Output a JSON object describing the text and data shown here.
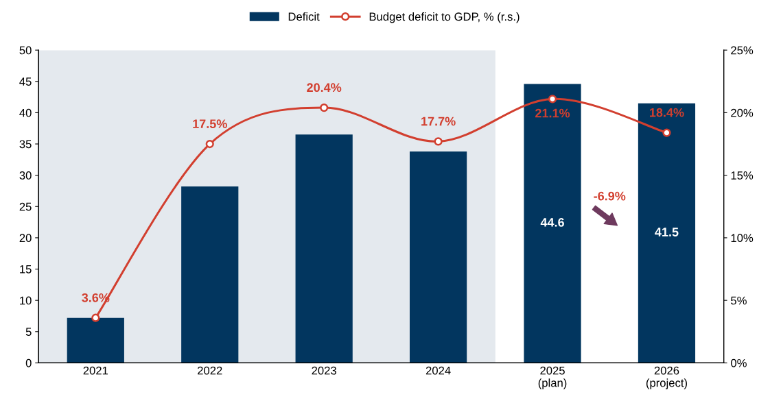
{
  "chart_data": {
    "type": "bar",
    "categories": [
      "2021",
      "2022",
      "2023",
      "2024",
      "2025\n(plan)",
      "2026\n(project)"
    ],
    "series": [
      {
        "name": "Deficit",
        "color": "#02365f",
        "values": [
          7.2,
          28.2,
          36.5,
          33.8,
          44.6,
          41.5
        ],
        "value_labels": [
          null,
          null,
          null,
          null,
          "44.6",
          "41.5"
        ]
      },
      {
        "name": "Budget deficit to GDP, % (r.s.)",
        "type": "line",
        "axis": "y2",
        "color": "#d23f2f",
        "marker": "circle",
        "line_style": "solid",
        "values": [
          3.6,
          17.5,
          20.4,
          17.7,
          21.1,
          18.4
        ],
        "value_labels": [
          "3.6%",
          "17.5%",
          "20.4%",
          "17.7%",
          "21.1%",
          "18.4%"
        ]
      }
    ],
    "ylim": [
      0,
      50
    ],
    "yticks": [
      0,
      5,
      10,
      15,
      20,
      25,
      30,
      35,
      40,
      45,
      50
    ],
    "y2lim": [
      0,
      25
    ],
    "y2ticks": [
      {
        "value": 0,
        "label": "0%"
      },
      {
        "value": 5,
        "label": "5%"
      },
      {
        "value": 10,
        "label": "10%"
      },
      {
        "value": 15,
        "label": "15%"
      },
      {
        "value": 20,
        "label": "20%"
      },
      {
        "value": 25,
        "label": "25%"
      }
    ],
    "bands": [
      {
        "axis": "x",
        "from": "2021",
        "to": "2024",
        "color": "#e4e9ee"
      }
    ],
    "annotations": [
      "-6.9%"
    ],
    "grid": false,
    "legend": "top"
  }
}
